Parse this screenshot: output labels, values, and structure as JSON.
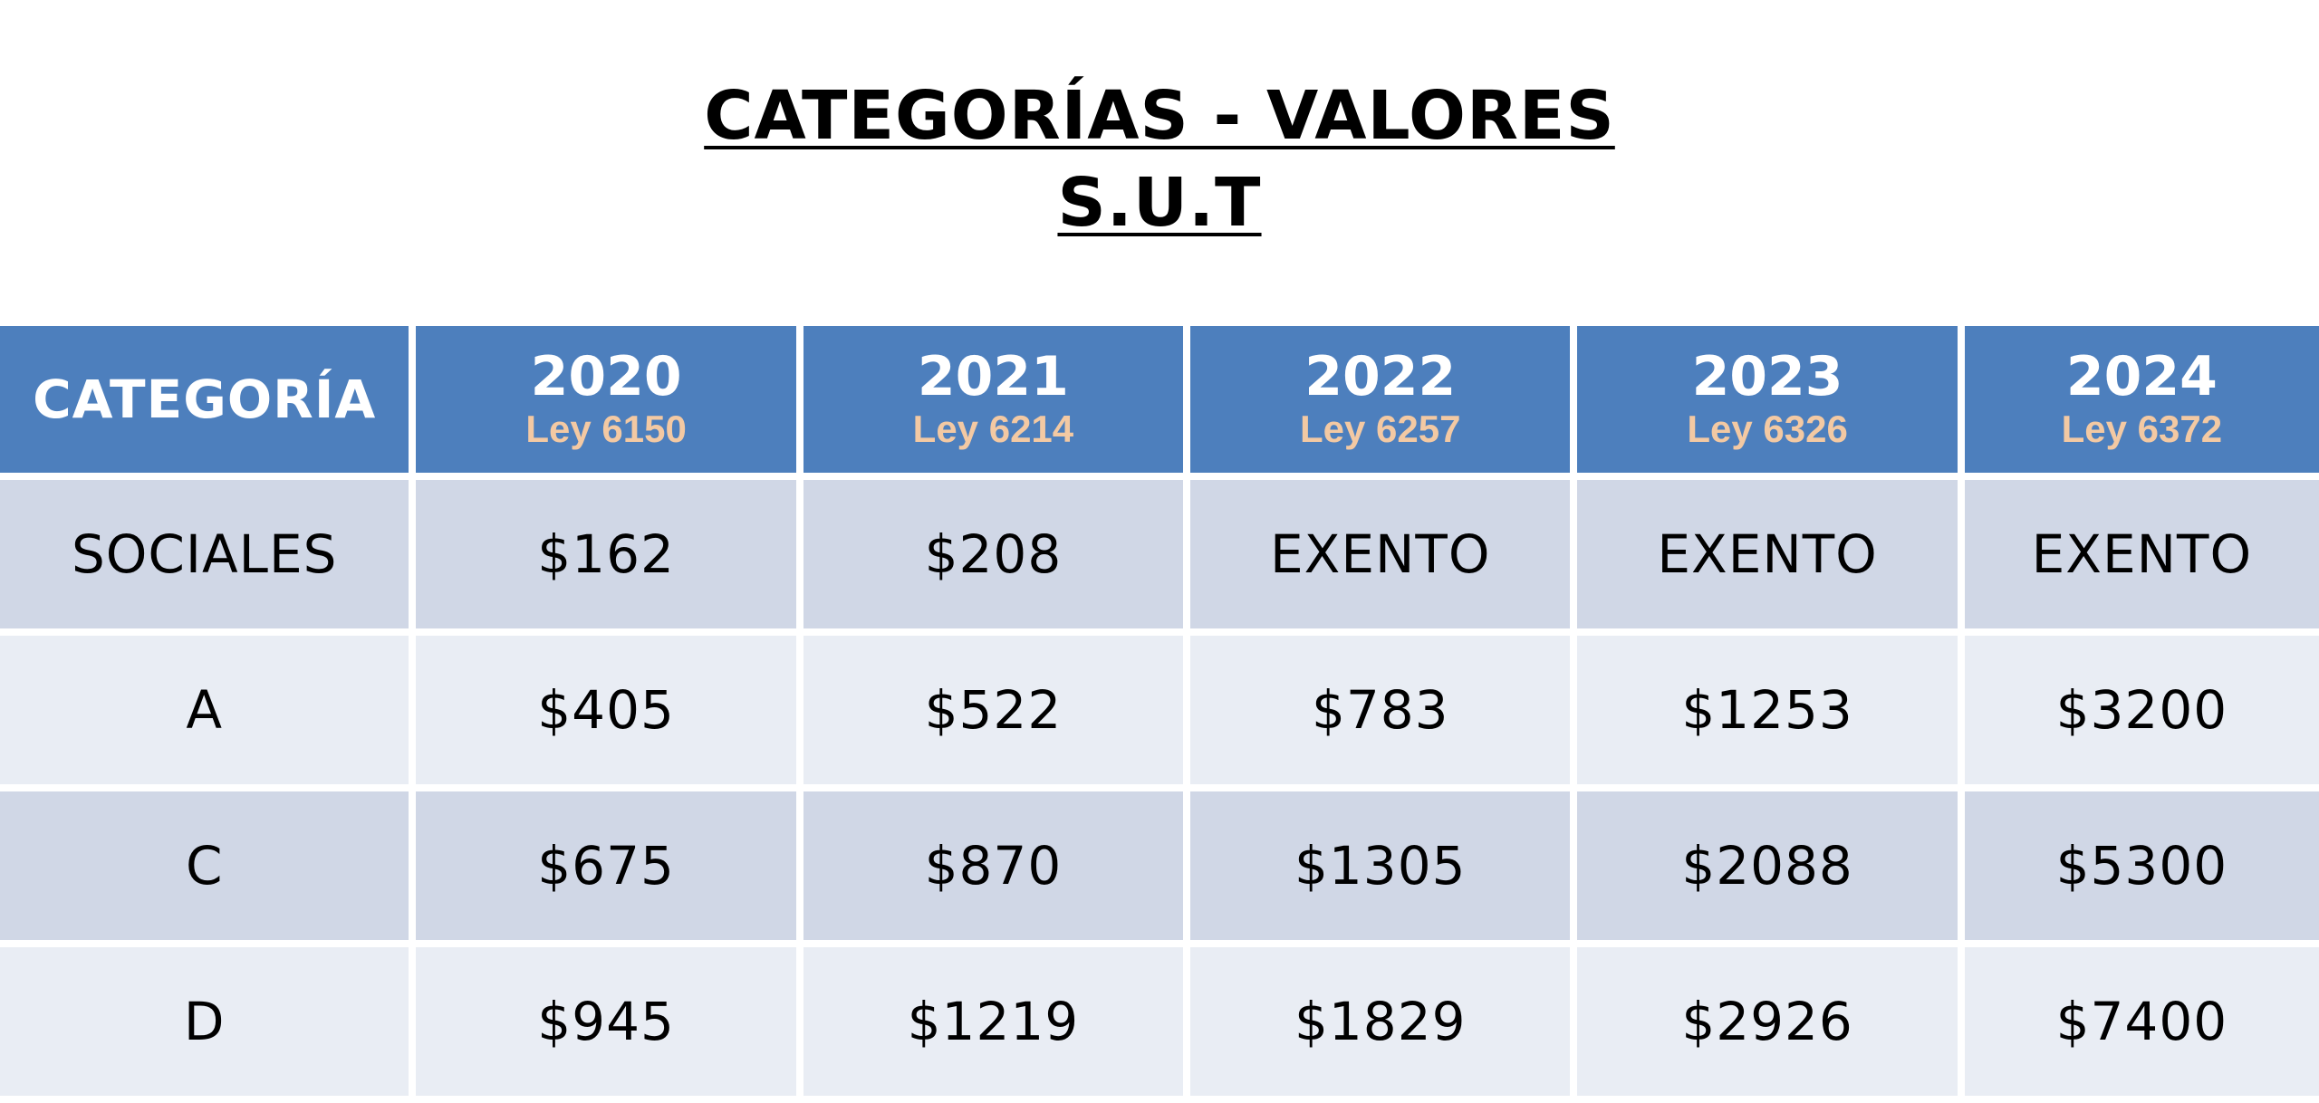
{
  "title": {
    "line1": "CATEGORÍAS - VALORES",
    "line2": "S.U.T"
  },
  "table": {
    "header": {
      "category_label": "CATEGORÍA",
      "years": [
        {
          "year": "2020",
          "law": "Ley 6150"
        },
        {
          "year": "2021",
          "law": "Ley 6214"
        },
        {
          "year": "2022",
          "law": "Ley 6257"
        },
        {
          "year": "2023",
          "law": "Ley 6326"
        },
        {
          "year": "2024",
          "law": "Ley 6372"
        }
      ]
    },
    "rows": [
      {
        "category": "SOCIALES",
        "values": [
          "$162",
          "$208",
          "EXENTO",
          "EXENTO",
          "EXENTO"
        ]
      },
      {
        "category": "A",
        "values": [
          "$405",
          "$522",
          "$783",
          "$1253",
          "$3200"
        ]
      },
      {
        "category": "C",
        "values": [
          "$675",
          "$870",
          "$1305",
          "$2088",
          "$5300"
        ]
      },
      {
        "category": "D",
        "values": [
          "$945",
          "$1219",
          "$1829",
          "$2926",
          "$7400"
        ]
      }
    ]
  },
  "colors": {
    "header_bg": "#4d7fbd",
    "law_text": "#f3c9a3",
    "row_dark": "#d0d7e6",
    "row_light": "#e9edf4"
  }
}
